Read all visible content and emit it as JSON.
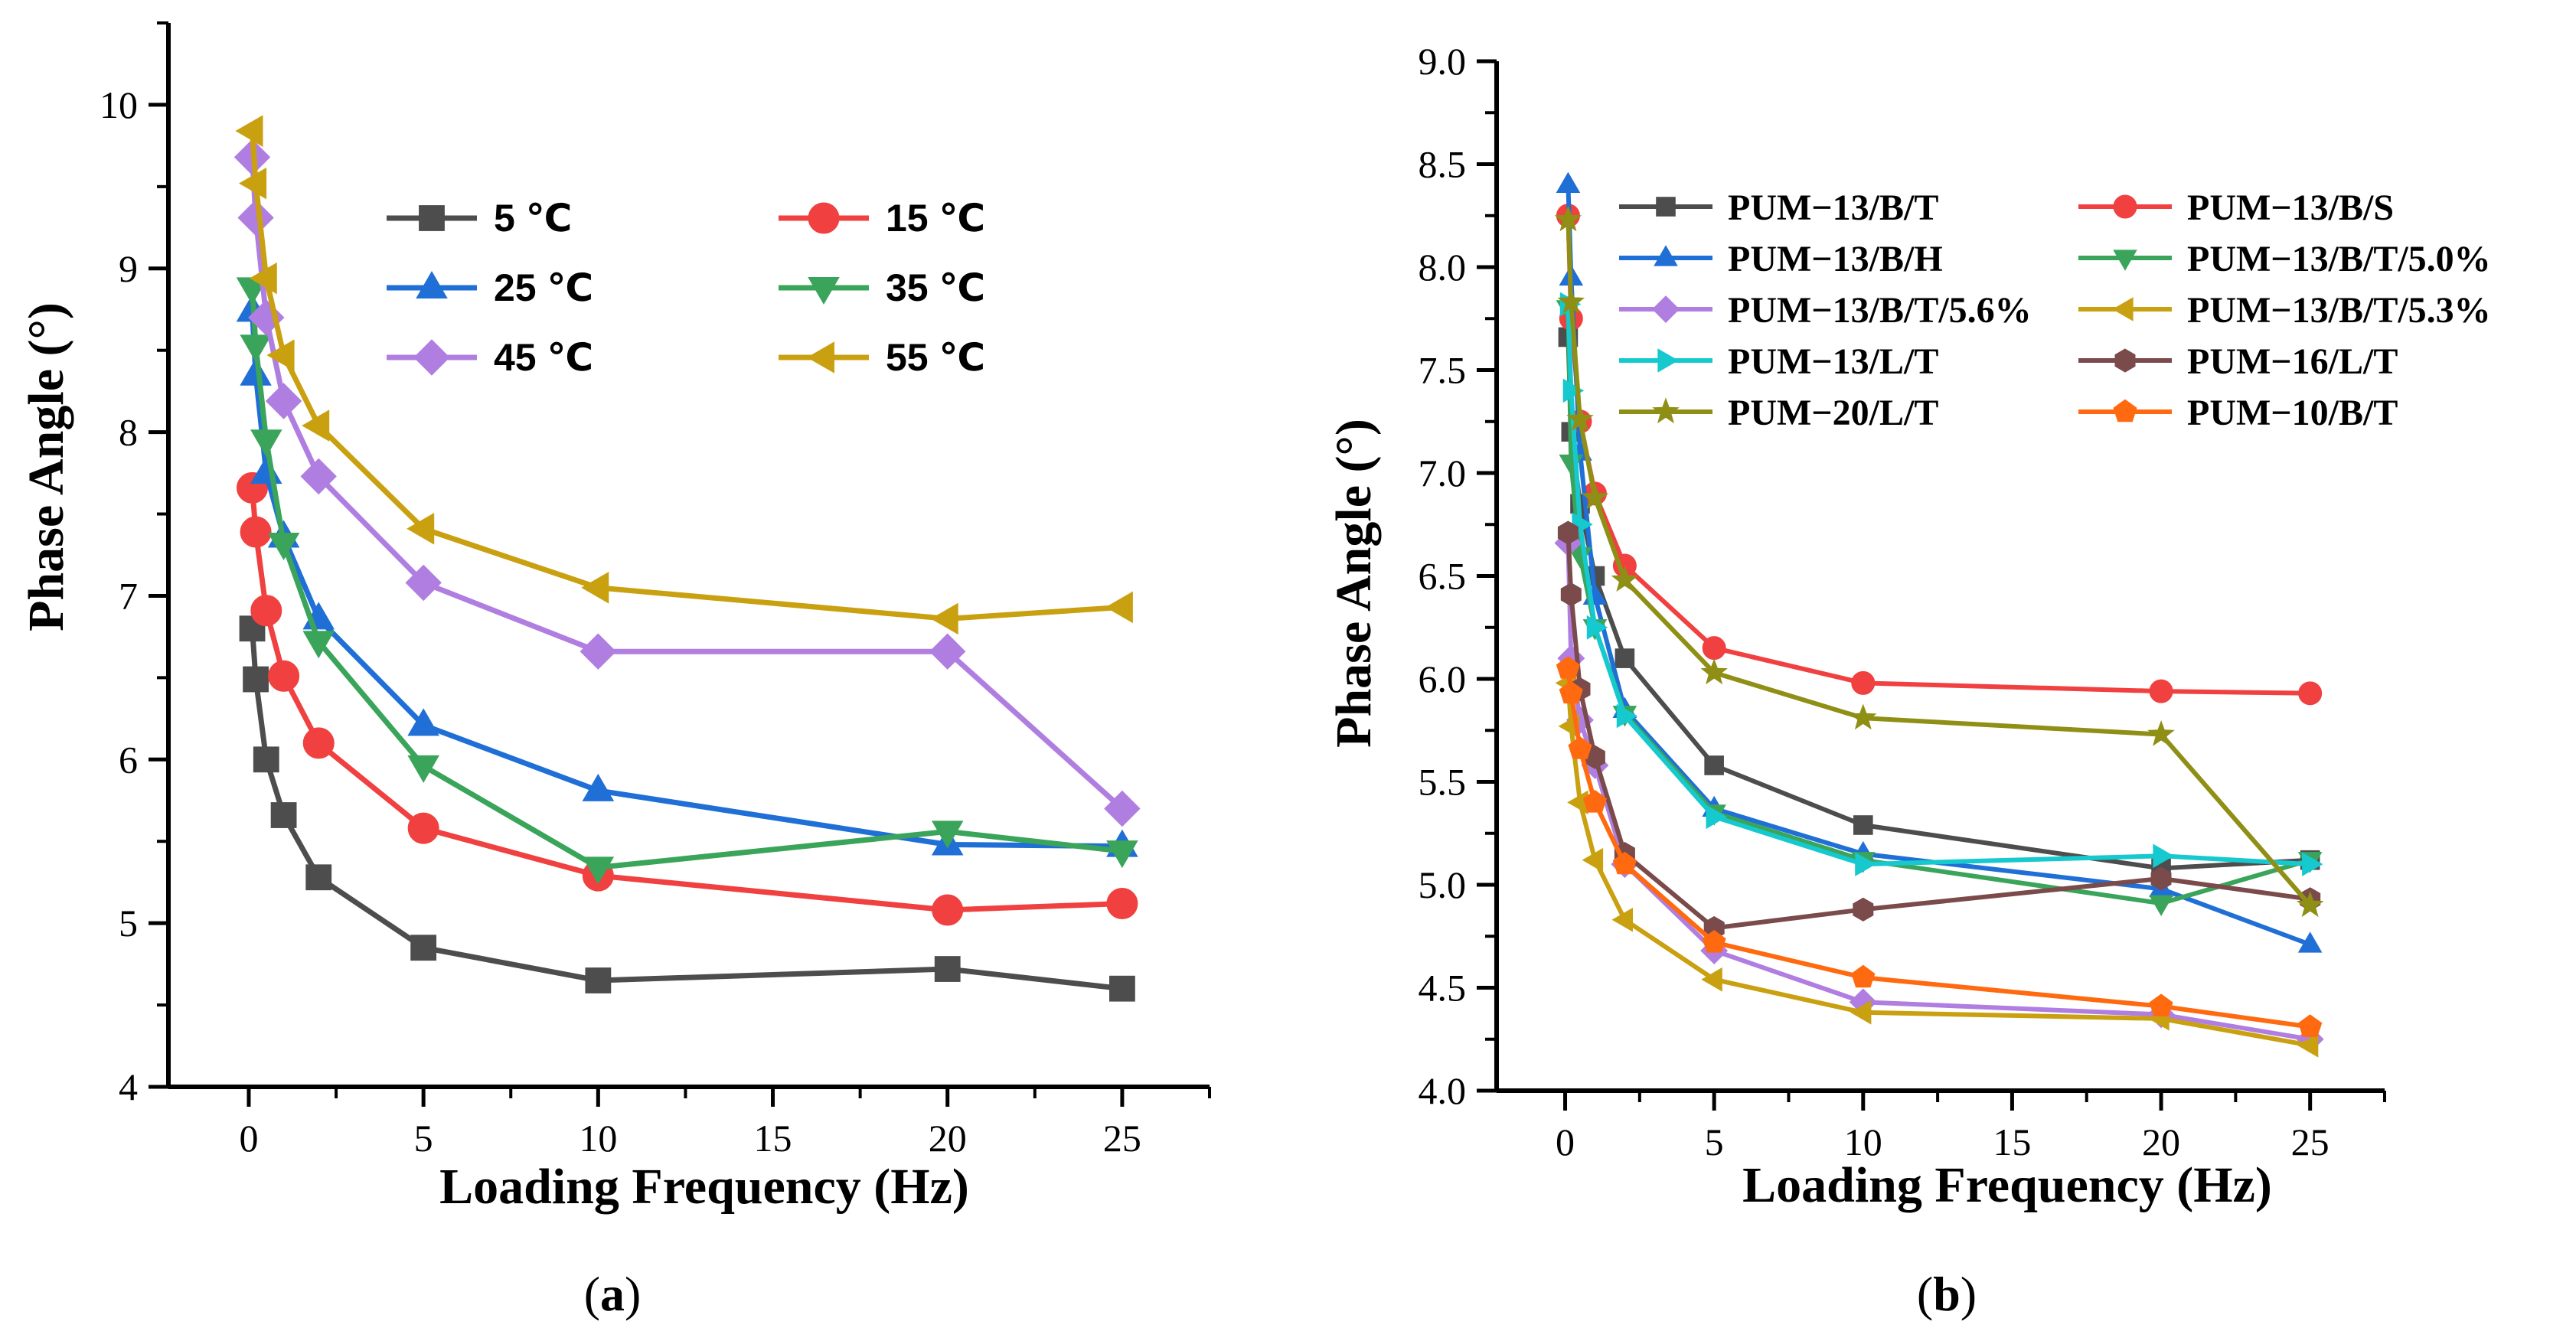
{
  "chart_data": [
    {
      "type": "line",
      "panel_label": "(a)",
      "panel_open": "(",
      "panel_letter": "a",
      "panel_close": ")",
      "title": "",
      "xlabel": "Loading Frequency (Hz)",
      "ylabel": "Phase Angle (°)",
      "xlim": [
        -2.3,
        27.5
      ],
      "ylim": [
        4,
        10.5
      ],
      "xticks": [
        0,
        5,
        10,
        15,
        20,
        25
      ],
      "yticks": [
        4,
        5,
        6,
        7,
        8,
        9,
        10
      ],
      "x": [
        0.1,
        0.2,
        0.5,
        1,
        2,
        5,
        10,
        20,
        25
      ],
      "legend_position": "top-right, two columns",
      "series": [
        {
          "name": "5 ℃",
          "color": "#4d4d4d",
          "marker": "square",
          "values": [
            6.8,
            6.49,
            6.0,
            5.66,
            5.28,
            4.85,
            4.65,
            4.72,
            4.6
          ]
        },
        {
          "name": "15 ℃",
          "color": "#f04040",
          "marker": "circle",
          "values": [
            7.66,
            7.39,
            6.91,
            6.51,
            6.1,
            5.58,
            5.29,
            5.08,
            5.12
          ]
        },
        {
          "name": "25 ℃",
          "color": "#1f6fd6",
          "marker": "triangle-up",
          "values": [
            8.74,
            8.35,
            7.75,
            7.36,
            6.86,
            6.21,
            5.81,
            5.48,
            5.47
          ]
        },
        {
          "name": "35 ℃",
          "color": "#3aa55a",
          "marker": "triangle-down",
          "values": [
            8.88,
            8.53,
            7.95,
            7.32,
            6.72,
            5.96,
            5.34,
            5.56,
            5.44
          ]
        },
        {
          "name": "45 ℃",
          "color": "#b07ee0",
          "marker": "diamond",
          "values": [
            9.68,
            9.31,
            8.7,
            8.19,
            7.73,
            7.08,
            6.66,
            6.66,
            5.7
          ]
        },
        {
          "name": "55 ℃",
          "color": "#c9a010",
          "marker": "triangle-left",
          "values": [
            9.84,
            9.52,
            8.94,
            8.47,
            8.04,
            7.41,
            7.05,
            6.86,
            6.93
          ]
        }
      ]
    },
    {
      "type": "line",
      "panel_label": "(b)",
      "panel_open": "(",
      "panel_letter": "b",
      "panel_close": ")",
      "title": "",
      "xlabel": "Loading Frequency (Hz)",
      "ylabel": "Phase Angle (°)",
      "xlim": [
        -2.3,
        27.5
      ],
      "ylim": [
        4.0,
        9.0
      ],
      "xticks": [
        0,
        5,
        10,
        15,
        20,
        25
      ],
      "yticks": [
        "4.0",
        "4.5",
        "5.0",
        "5.5",
        "6.0",
        "6.5",
        "7.0",
        "7.5",
        "8.0",
        "8.5",
        "9.0"
      ],
      "x": [
        0.1,
        0.2,
        0.5,
        1,
        2,
        5,
        10,
        20,
        25
      ],
      "legend_position": "top, two columns",
      "series": [
        {
          "name": "PUM−13/B/T",
          "color": "#4d4d4d",
          "marker": "square",
          "values": [
            7.66,
            7.2,
            6.85,
            6.5,
            6.1,
            5.58,
            5.29,
            5.08,
            5.12
          ]
        },
        {
          "name": "PUM−13/B/S",
          "color": "#f04040",
          "marker": "circle",
          "values": [
            8.25,
            7.75,
            7.25,
            6.9,
            6.55,
            6.15,
            5.98,
            5.94,
            5.93
          ]
        },
        {
          "name": "PUM−13/B/H",
          "color": "#1f6fd6",
          "marker": "triangle-up",
          "values": [
            8.4,
            7.95,
            7.1,
            6.4,
            5.85,
            5.37,
            5.15,
            4.98,
            4.71
          ]
        },
        {
          "name": "PUM−13/B/T/5.0%",
          "color": "#3aa55a",
          "marker": "triangle-down",
          "values": [
            7.8,
            7.05,
            6.6,
            6.25,
            5.83,
            5.35,
            5.12,
            4.91,
            5.12
          ]
        },
        {
          "name": "PUM−13/B/T/5.6%",
          "color": "#b07ee0",
          "marker": "diamond",
          "values": [
            6.66,
            6.1,
            5.8,
            5.58,
            5.1,
            4.68,
            4.43,
            4.37,
            4.25
          ]
        },
        {
          "name": "PUM−13/B/T/5.3%",
          "color": "#c9a010",
          "marker": "triangle-left",
          "values": [
            5.98,
            5.77,
            5.4,
            5.12,
            4.83,
            4.54,
            4.38,
            4.35,
            4.22
          ]
        },
        {
          "name": "PUM−13/L/T",
          "color": "#16c9cf",
          "marker": "triangle-right",
          "values": [
            7.82,
            7.4,
            6.75,
            6.25,
            5.82,
            5.33,
            5.1,
            5.14,
            5.1
          ]
        },
        {
          "name": "PUM−16/L/T",
          "color": "#7b4a4a",
          "marker": "hexagon",
          "values": [
            6.71,
            6.41,
            5.95,
            5.62,
            5.15,
            4.79,
            4.88,
            5.03,
            4.93
          ]
        },
        {
          "name": "PUM−20/L/T",
          "color": "#8f8f16",
          "marker": "star",
          "values": [
            8.23,
            7.83,
            7.26,
            6.88,
            6.48,
            6.03,
            5.81,
            5.73,
            4.9
          ]
        },
        {
          "name": "PUM−10/B/T",
          "color": "#ff6a10",
          "marker": "pentagon",
          "values": [
            6.05,
            5.93,
            5.66,
            5.4,
            5.1,
            4.72,
            4.55,
            4.41,
            4.31
          ]
        }
      ]
    }
  ]
}
